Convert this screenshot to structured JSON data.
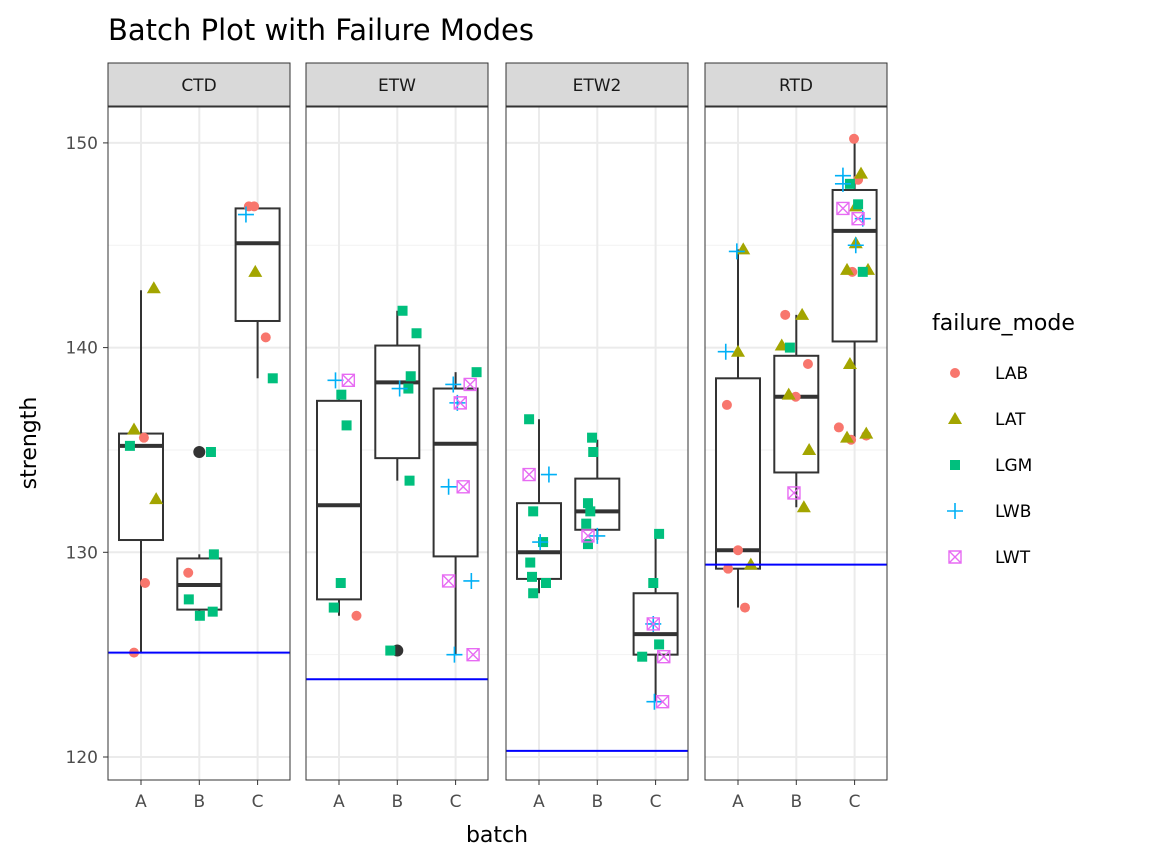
{
  "chart_data": {
    "type": "box",
    "title": "Batch Plot with Failure Modes",
    "xlabel": "batch",
    "ylabel": "strength",
    "ylim": [
      118.88,
      151.75
    ],
    "yticks": [
      "120",
      "130",
      "140",
      "150"
    ],
    "ytick_values": [
      120,
      130,
      140,
      150
    ],
    "categories": [
      "A",
      "B",
      "C"
    ],
    "grid": true,
    "legend": {
      "title": "failure_mode",
      "placement": "right",
      "entries": [
        {
          "name": "LAB",
          "color": "#F8766D",
          "shape": "circle"
        },
        {
          "name": "LAT",
          "color": "#A3A500",
          "shape": "triangle"
        },
        {
          "name": "LGM",
          "color": "#00BF7D",
          "shape": "square"
        },
        {
          "name": "LWB",
          "color": "#00B0F6",
          "shape": "plus"
        },
        {
          "name": "LWT",
          "color": "#E76BF3",
          "shape": "square-cross"
        }
      ]
    },
    "reference_line_color": "#0000FF",
    "panels": [
      {
        "name": "CTD",
        "hline": 125.1,
        "boxes": [
          {
            "batch": "A",
            "lower": 125.1,
            "q1": 130.6,
            "median": 135.2,
            "q3": 135.8,
            "upper": 142.8,
            "outliers": []
          },
          {
            "batch": "B",
            "lower": 126.9,
            "q1": 127.2,
            "median": 128.4,
            "q3": 129.7,
            "upper": 129.9,
            "outliers": [
              134.9
            ]
          },
          {
            "batch": "C",
            "lower": 138.5,
            "q1": 141.3,
            "median": 145.1,
            "q3": 146.8,
            "upper": 146.9,
            "outliers": []
          }
        ],
        "points": {
          "LAB": [
            [
              1.05,
              135.6
            ],
            [
              1.07,
              128.5
            ],
            [
              0.88,
              125.1
            ],
            [
              1.81,
              129.0
            ],
            [
              2.94,
              146.9
            ],
            [
              2.85,
              146.9
            ],
            [
              3.14,
              140.5
            ]
          ],
          "LAT": [
            [
              0.88,
              136.0
            ],
            [
              1.22,
              142.9
            ],
            [
              1.26,
              132.6
            ],
            [
              2.96,
              143.7
            ]
          ],
          "LGM": [
            [
              0.81,
              135.2
            ],
            [
              2.2,
              134.9
            ],
            [
              1.82,
              127.7
            ],
            [
              2.01,
              126.9
            ],
            [
              2.23,
              127.1
            ],
            [
              2.25,
              129.9
            ],
            [
              3.26,
              138.5
            ]
          ],
          "LWB": [
            [
              2.8,
              146.5
            ]
          ],
          "LWT": []
        }
      },
      {
        "name": "ETW",
        "hline": 123.8,
        "boxes": [
          {
            "batch": "A",
            "lower": 126.9,
            "q1": 127.7,
            "median": 132.3,
            "q3": 137.4,
            "upper": 137.5,
            "outliers": []
          },
          {
            "batch": "B",
            "lower": 133.5,
            "q1": 134.6,
            "median": 138.3,
            "q3": 140.1,
            "upper": 141.8,
            "outliers": [
              125.2
            ]
          },
          {
            "batch": "C",
            "lower": 125.0,
            "q1": 129.8,
            "median": 135.3,
            "q3": 138.0,
            "upper": 138.8,
            "outliers": []
          }
        ],
        "points": {
          "LAB": [
            [
              1.3,
              126.9
            ]
          ],
          "LAT": [],
          "LGM": [
            [
              1.04,
              137.7
            ],
            [
              1.13,
              136.2
            ],
            [
              1.03,
              128.5
            ],
            [
              0.91,
              127.3
            ],
            [
              2.09,
              141.8
            ],
            [
              2.33,
              140.7
            ],
            [
              2.23,
              138.6
            ],
            [
              2.19,
              138.0
            ],
            [
              2.21,
              133.5
            ],
            [
              1.88,
              125.2
            ],
            [
              3.36,
              138.8
            ]
          ],
          "LWB": [
            [
              0.94,
              138.4
            ],
            [
              2.04,
              138.0
            ],
            [
              2.96,
              138.2
            ],
            [
              3.03,
              137.3
            ],
            [
              2.88,
              133.2
            ],
            [
              3.27,
              128.6
            ],
            [
              2.98,
              125.0
            ]
          ],
          "LWT": [
            [
              1.16,
              138.4
            ],
            [
              3.25,
              138.2
            ],
            [
              3.08,
              137.3
            ],
            [
              3.13,
              133.2
            ],
            [
              2.88,
              128.6
            ],
            [
              3.3,
              125.0
            ]
          ]
        }
      },
      {
        "name": "ETW2",
        "hline": 120.3,
        "boxes": [
          {
            "batch": "A",
            "lower": 128.0,
            "q1": 128.7,
            "median": 130.0,
            "q3": 132.4,
            "upper": 136.5,
            "outliers": []
          },
          {
            "batch": "B",
            "lower": 130.6,
            "q1": 131.1,
            "median": 132.0,
            "q3": 133.6,
            "upper": 135.5,
            "outliers": []
          },
          {
            "batch": "C",
            "lower": 122.7,
            "q1": 125.0,
            "median": 126.0,
            "q3": 128.0,
            "upper": 130.8,
            "outliers": []
          }
        ],
        "points": {
          "LAB": [],
          "LAT": [],
          "LGM": [
            [
              0.83,
              136.5
            ],
            [
              0.9,
              132.0
            ],
            [
              0.85,
              129.5
            ],
            [
              0.88,
              128.8
            ],
            [
              0.9,
              128.0
            ],
            [
              1.12,
              128.5
            ],
            [
              1.07,
              130.5
            ],
            [
              1.91,
              135.6
            ],
            [
              1.93,
              134.9
            ],
            [
              1.84,
              132.4
            ],
            [
              1.88,
              132.0
            ],
            [
              1.81,
              131.4
            ],
            [
              1.84,
              130.4
            ],
            [
              3.06,
              130.9
            ],
            [
              2.96,
              128.5
            ],
            [
              3.06,
              125.5
            ],
            [
              2.77,
              124.9
            ]
          ],
          "LWB": [
            [
              1.17,
              133.8
            ],
            [
              1.02,
              130.5
            ],
            [
              2.0,
              130.8
            ],
            [
              2.96,
              126.5
            ],
            [
              2.98,
              122.7
            ]
          ],
          "LWT": [
            [
              0.83,
              133.8
            ],
            [
              1.84,
              130.8
            ],
            [
              2.96,
              126.5
            ],
            [
              3.14,
              124.9
            ],
            [
              3.12,
              122.7
            ]
          ]
        }
      },
      {
        "name": "RTD",
        "hline": 129.4,
        "boxes": [
          {
            "batch": "A",
            "lower": 127.3,
            "q1": 129.2,
            "median": 130.1,
            "q3": 138.5,
            "upper": 144.8,
            "outliers": []
          },
          {
            "batch": "B",
            "lower": 132.2,
            "q1": 133.9,
            "median": 137.6,
            "q3": 139.6,
            "upper": 141.6,
            "outliers": []
          },
          {
            "batch": "C",
            "lower": 135.6,
            "q1": 140.3,
            "median": 145.7,
            "q3": 147.7,
            "upper": 150.2,
            "outliers": []
          }
        ],
        "points": {
          "LAB": [
            [
              0.81,
              137.2
            ],
            [
              1.0,
              130.1
            ],
            [
              0.83,
              129.2
            ],
            [
              1.12,
              127.3
            ],
            [
              1.81,
              141.6
            ],
            [
              2.2,
              139.2
            ],
            [
              1.99,
              137.6
            ],
            [
              2.99,
              150.2
            ],
            [
              3.06,
              148.2
            ],
            [
              2.96,
              143.7
            ],
            [
              2.73,
              136.1
            ],
            [
              2.94,
              135.5
            ],
            [
              3.2,
              135.7
            ]
          ],
          "LAT": [
            [
              1.09,
              144.8
            ],
            [
              1.0,
              139.8
            ],
            [
              1.22,
              129.4
            ],
            [
              2.1,
              141.6
            ],
            [
              1.75,
              140.1
            ],
            [
              1.87,
              137.7
            ],
            [
              2.22,
              135.0
            ],
            [
              2.13,
              132.2
            ],
            [
              3.11,
              148.5
            ],
            [
              3.02,
              146.9
            ],
            [
              3.02,
              145.1
            ],
            [
              2.87,
              143.8
            ],
            [
              3.23,
              143.8
            ],
            [
              2.92,
              139.2
            ],
            [
              2.87,
              135.6
            ],
            [
              3.2,
              135.8
            ]
          ],
          "LGM": [
            [
              1.89,
              140.0
            ],
            [
              2.92,
              148.0
            ],
            [
              3.06,
              147.0
            ],
            [
              3.14,
              143.7
            ]
          ],
          "LWB": [
            [
              0.98,
              144.7
            ],
            [
              0.79,
              139.8
            ],
            [
              2.8,
              148.4
            ],
            [
              2.8,
              148.0
            ],
            [
              3.14,
              146.3
            ],
            [
              3.02,
              145.0
            ]
          ],
          "LWT": [
            [
              1.96,
              132.9
            ],
            [
              2.8,
              146.8
            ],
            [
              3.06,
              146.3
            ]
          ]
        }
      }
    ]
  }
}
